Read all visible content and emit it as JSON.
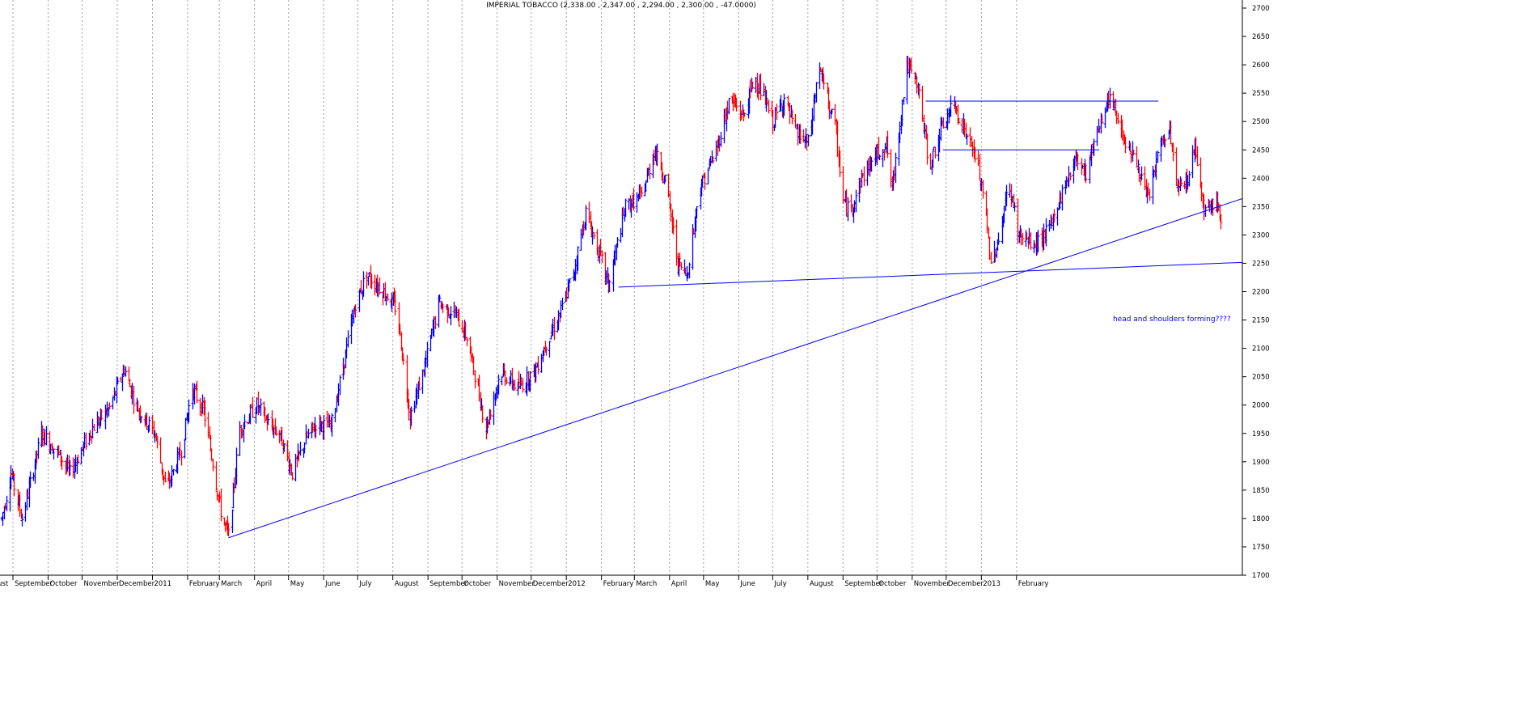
{
  "window": {
    "title": "IMPERIAL TOBACCO (2,338.00 , 2,347.00 , 2,294.00 , 2,300.00 , -47.0000)"
  },
  "colors": {
    "up": "#0000ff",
    "down": "#ff0000",
    "trendline": "#0000ff",
    "grid": "#a0a0a0",
    "axis": "#000000",
    "background": "#ffffff"
  },
  "chart_data": {
    "type": "ohlc",
    "title": "IMPERIAL TOBACCO (2,338.00 , 2,347.00 , 2,294.00 , 2,300.00 , -47.0000)",
    "y_axis": {
      "position": "right",
      "ylim": [
        1700,
        2700
      ],
      "ticks": [
        1700,
        1750,
        1800,
        1850,
        1900,
        1950,
        2000,
        2050,
        2100,
        2150,
        2200,
        2250,
        2300,
        2350,
        2400,
        2450,
        2500,
        2550,
        2600,
        2650,
        2700
      ]
    },
    "x_axis": {
      "labels": [
        "ust",
        "September",
        "October",
        "November",
        "December",
        "2011",
        "February",
        "March",
        "April",
        "May",
        "June",
        "July",
        "August",
        "September",
        "October",
        "November",
        "December",
        "2012",
        "February",
        "March",
        "April",
        "May",
        "June",
        "July",
        "August",
        "September",
        "October",
        "November",
        "December",
        "2013",
        "February"
      ],
      "label_days": [
        -5,
        10,
        41,
        71,
        102,
        133,
        164,
        192,
        223,
        253,
        284,
        314,
        345,
        376,
        406,
        437,
        467,
        498,
        529,
        558,
        589,
        619,
        650,
        680,
        711,
        742,
        772,
        803,
        833,
        864,
        895
      ]
    },
    "grid": "vertical-dotted",
    "last_bar": {
      "open": 2338,
      "high": 2347,
      "low": 2294,
      "close": 2300,
      "change": -47
    },
    "anchors": [
      [
        0,
        1800
      ],
      [
        8,
        1880
      ],
      [
        18,
        1800
      ],
      [
        35,
        1950
      ],
      [
        48,
        1920
      ],
      [
        60,
        1880
      ],
      [
        80,
        1960
      ],
      [
        95,
        1995
      ],
      [
        108,
        2065
      ],
      [
        118,
        2000
      ],
      [
        135,
        1950
      ],
      [
        145,
        1850
      ],
      [
        158,
        1920
      ],
      [
        168,
        2030
      ],
      [
        178,
        1990
      ],
      [
        186,
        1900
      ],
      [
        194,
        1800
      ],
      [
        200,
        1770
      ],
      [
        210,
        1960
      ],
      [
        225,
        2000
      ],
      [
        236,
        1965
      ],
      [
        245,
        1950
      ],
      [
        256,
        1880
      ],
      [
        268,
        1940
      ],
      [
        278,
        1970
      ],
      [
        290,
        1960
      ],
      [
        300,
        2060
      ],
      [
        312,
        2180
      ],
      [
        322,
        2230
      ],
      [
        337,
        2200
      ],
      [
        348,
        2170
      ],
      [
        360,
        1980
      ],
      [
        373,
        2070
      ],
      [
        385,
        2180
      ],
      [
        400,
        2160
      ],
      [
        410,
        2120
      ],
      [
        427,
        1960
      ],
      [
        440,
        2060
      ],
      [
        455,
        2030
      ],
      [
        470,
        2060
      ],
      [
        480,
        2110
      ],
      [
        492,
        2160
      ],
      [
        505,
        2240
      ],
      [
        515,
        2340
      ],
      [
        528,
        2260
      ],
      [
        535,
        2210
      ],
      [
        550,
        2350
      ],
      [
        565,
        2370
      ],
      [
        575,
        2450
      ],
      [
        585,
        2400
      ],
      [
        596,
        2250
      ],
      [
        604,
        2230
      ],
      [
        615,
        2380
      ],
      [
        630,
        2450
      ],
      [
        642,
        2540
      ],
      [
        654,
        2510
      ],
      [
        664,
        2580
      ],
      [
        680,
        2500
      ],
      [
        690,
        2540
      ],
      [
        700,
        2480
      ],
      [
        712,
        2460
      ],
      [
        720,
        2600
      ],
      [
        735,
        2490
      ],
      [
        742,
        2360
      ],
      [
        748,
        2340
      ],
      [
        758,
        2400
      ],
      [
        770,
        2440
      ],
      [
        780,
        2460
      ],
      [
        785,
        2380
      ],
      [
        798,
        2600
      ],
      [
        808,
        2560
      ],
      [
        818,
        2420
      ],
      [
        831,
        2500
      ],
      [
        840,
        2530
      ],
      [
        850,
        2480
      ],
      [
        860,
        2430
      ],
      [
        868,
        2330
      ],
      [
        872,
        2250
      ],
      [
        880,
        2300
      ],
      [
        888,
        2390
      ],
      [
        897,
        2300
      ],
      [
        910,
        2280
      ],
      [
        924,
        2310
      ],
      [
        936,
        2380
      ],
      [
        948,
        2440
      ],
      [
        956,
        2410
      ],
      [
        968,
        2500
      ],
      [
        978,
        2540
      ],
      [
        988,
        2480
      ],
      [
        1002,
        2420
      ],
      [
        1010,
        2360
      ],
      [
        1022,
        2460
      ],
      [
        1030,
        2480
      ],
      [
        1037,
        2380
      ],
      [
        1046,
        2400
      ],
      [
        1052,
        2460
      ],
      [
        1060,
        2350
      ],
      [
        1072,
        2360
      ],
      [
        1076,
        2300
      ]
    ],
    "trendlines": [
      {
        "from": [
          200,
          1766
        ],
        "to": [
          1100,
          2368
        ]
      },
      {
        "from": [
          544,
          2208
        ],
        "to": [
          1100,
          2252
        ]
      },
      {
        "from": [
          815,
          2536
        ],
        "to": [
          1020,
          2536
        ]
      },
      {
        "from": [
          830,
          2450
        ],
        "to": [
          968,
          2450
        ]
      }
    ],
    "annotations": [
      {
        "text": "head and shoulders forming????",
        "x": 980,
        "y": 2148
      }
    ]
  }
}
